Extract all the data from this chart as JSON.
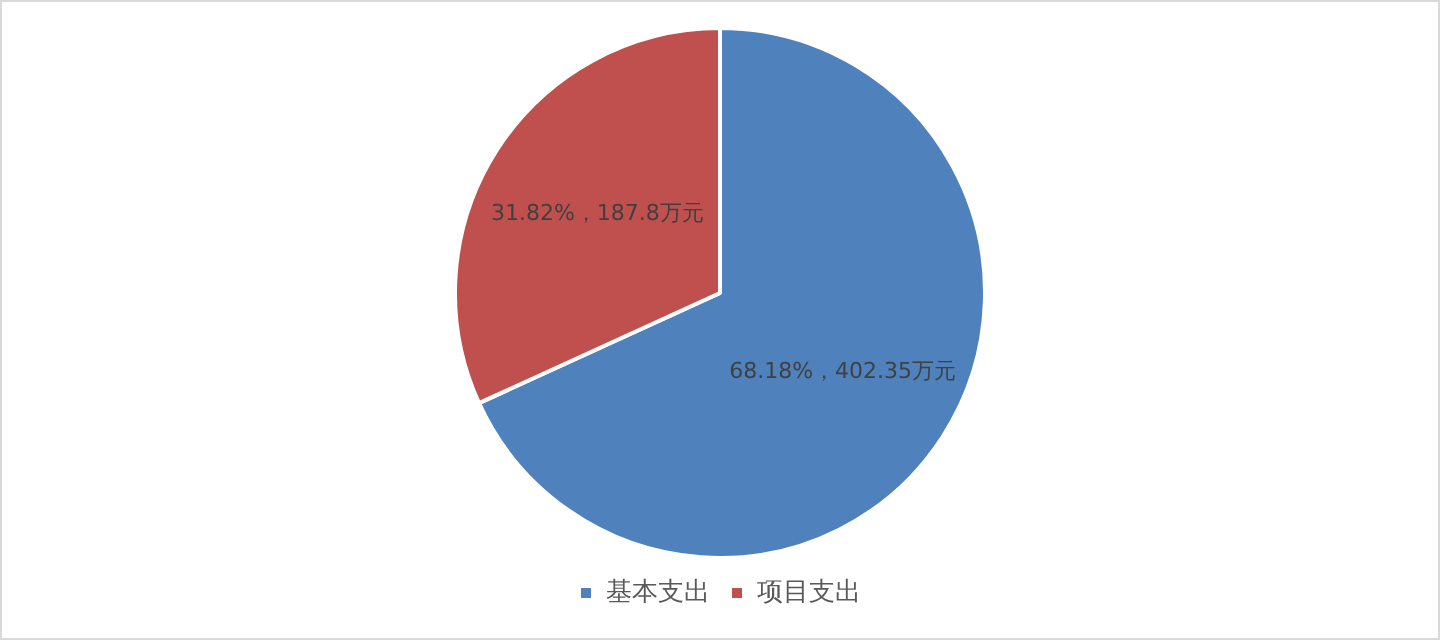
{
  "chart_data": {
    "type": "pie",
    "categories": [
      "基本支出",
      "项目支出"
    ],
    "values": [
      402.35,
      187.8
    ],
    "colors": [
      "#4f81bd",
      "#c0504d"
    ],
    "value_labels": [
      "68.18%，402.35万元",
      "31.82%，187.8万元"
    ],
    "legend": "bottom"
  }
}
